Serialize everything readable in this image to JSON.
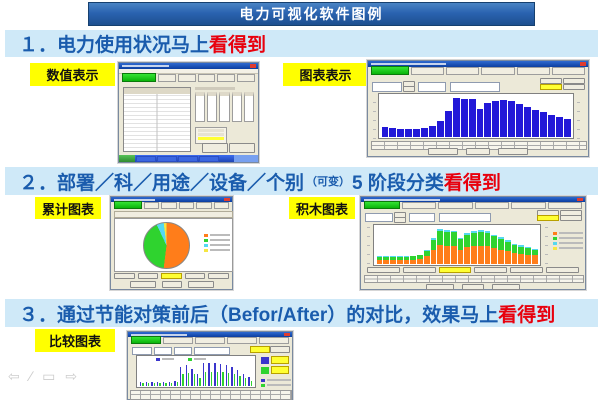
{
  "slide": {
    "title": "电力可视化软件图例"
  },
  "sections": [
    {
      "heading": {
        "prefix": "１．",
        "blue": "电力使用状况马上",
        "red": "看得到"
      }
    },
    {
      "heading": {
        "prefix": "２．",
        "blue": "部署／科／用途／设备／个别",
        "small": "（可变）",
        "blue2": "5 阶段分类",
        "red": "看得到"
      }
    },
    {
      "heading": {
        "prefix": "３．",
        "blue": "通过节能对策前后（Befor/After）的对比，效果马上",
        "red": "看得到"
      }
    }
  ],
  "captions": [
    "数值表示",
    "图表表示",
    "累计图表",
    "积木图表",
    "比较图表"
  ],
  "colors": {
    "heading_blue": "#1a5cad",
    "highlight_red": "#e8000d",
    "banner_bg": "#cfe9f8",
    "caption_bg": "#ffff00",
    "slide_titlebar_blue": "#2a63b0",
    "window_bg": "#ece9d8",
    "window_titlebar_blue": "#1e55c0",
    "tab_green": "#0ad00a",
    "bar_blue": "#2218d8",
    "stack_orange": "#ff7d1a",
    "stack_green": "#2fd32f",
    "stack_cyan": "#55d8f0",
    "pie_yellow": "#f5e642",
    "compare_blue": "#3a35cc",
    "taskbar_blue": "#2a5ad4"
  },
  "chart_data": [
    {
      "type": "bar",
      "x_count": 24,
      "ylim": [
        0,
        100
      ],
      "color": "#2218d8",
      "values": [
        24,
        21,
        19,
        19,
        19,
        21,
        26,
        38,
        62,
        93,
        90,
        90,
        66,
        82,
        86,
        88,
        86,
        79,
        71,
        65,
        59,
        53,
        48,
        43
      ]
    },
    {
      "type": "pie",
      "legend_position": "right",
      "slices": [
        {
          "name": "slice-orange",
          "value": 52,
          "color": "#ff7d1a"
        },
        {
          "name": "slice-green",
          "value": 41,
          "color": "#2fd32f"
        },
        {
          "name": "slice-cyan",
          "value": 5,
          "color": "#55d8f0"
        },
        {
          "name": "slice-yellow",
          "value": 2,
          "color": "#f5e642"
        }
      ]
    },
    {
      "type": "bar",
      "variant": "stacked",
      "x_count": 24,
      "ylim": [
        0,
        100
      ],
      "legend_position": "right",
      "series": [
        {
          "name": "series-orange",
          "color": "#ff7d1a",
          "values": [
            10,
            10,
            10,
            10,
            10,
            11,
            13,
            20,
            36,
            50,
            48,
            47,
            38,
            44,
            47,
            48,
            47,
            42,
            38,
            34,
            30,
            27,
            25,
            23
          ]
        },
        {
          "name": "series-green",
          "color": "#2fd32f",
          "values": [
            8,
            8,
            8,
            8,
            8,
            9,
            10,
            15,
            28,
            38,
            37,
            36,
            27,
            33,
            35,
            36,
            35,
            31,
            28,
            25,
            21,
            19,
            17,
            15
          ]
        },
        {
          "name": "series-cyan",
          "color": "#55d8f0",
          "values": [
            2,
            2,
            2,
            2,
            2,
            2,
            2,
            3,
            4,
            5,
            5,
            5,
            4,
            5,
            5,
            5,
            5,
            4,
            4,
            3,
            3,
            3,
            2,
            2
          ]
        }
      ]
    },
    {
      "type": "bar",
      "variant": "grouped",
      "x_count": 20,
      "ylim": [
        0,
        100
      ],
      "legend_position": "top",
      "series": [
        {
          "name": "before-blue",
          "color": "#3a35cc",
          "values": [
            15,
            15,
            15,
            15,
            15,
            15,
            16,
            66,
            72,
            60,
            40,
            78,
            80,
            78,
            75,
            72,
            65,
            55,
            42,
            30
          ]
        },
        {
          "name": "after-green",
          "color": "#2fd32f",
          "values": [
            12,
            12,
            12,
            12,
            12,
            12,
            13,
            42,
            45,
            42,
            26,
            48,
            48,
            48,
            47,
            45,
            42,
            35,
            28,
            18
          ]
        }
      ]
    }
  ],
  "presenter_nav": {
    "icons": [
      "back-arrow",
      "pen",
      "slide",
      "forward-arrow"
    ]
  }
}
